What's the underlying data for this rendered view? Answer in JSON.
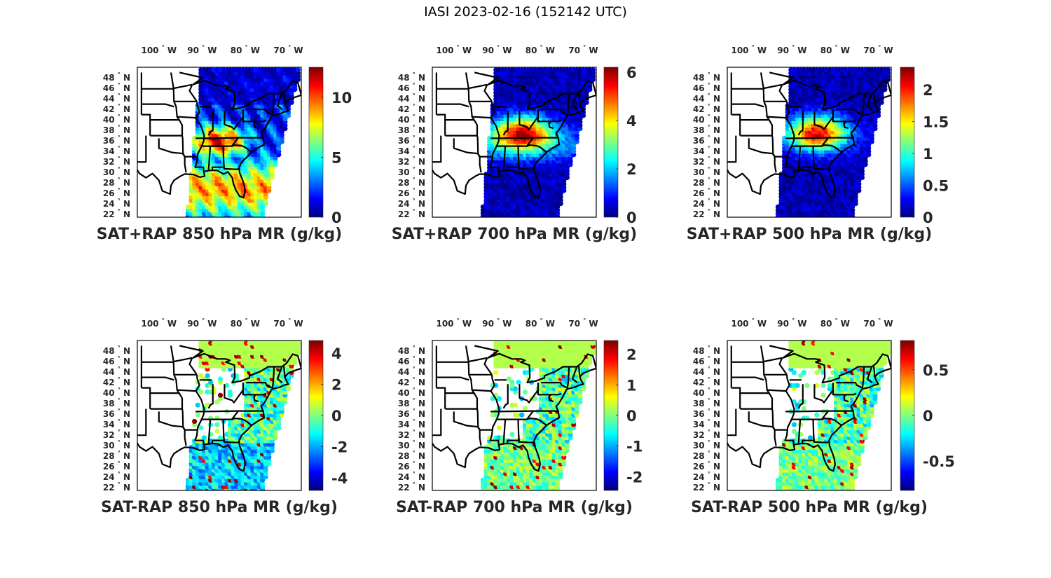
{
  "figure_title": "IASI 2023-02-16 (152142 UTC)",
  "colormap": [
    "#00007f",
    "#0000ff",
    "#007fff",
    "#00ffff",
    "#7fff7f",
    "#ffff00",
    "#ff7f00",
    "#ff0000",
    "#7f0000"
  ],
  "state_line_color": "#000000",
  "chart_data": [
    {
      "type": "heatmap",
      "title": "SAT+RAP 850 hPa MR (g/kg)",
      "xticklabels": [
        "100",
        "90",
        "80",
        "70"
      ],
      "xtick_suffix": "W",
      "yticklabels": [
        "48",
        "46",
        "44",
        "42",
        "40",
        "38",
        "36",
        "34",
        "32",
        "30",
        "28",
        "26",
        "24",
        "22"
      ],
      "ytick_suffix": "N",
      "deg_symbol": "°",
      "colorbar": {
        "clim": [
          0,
          12.5
        ],
        "ticks": [
          0,
          5,
          10
        ],
        "ticklabels": [
          "0",
          "5",
          "10"
        ]
      },
      "field": "total"
    },
    {
      "type": "heatmap",
      "title": "SAT+RAP 700 hPa MR (g/kg)",
      "xticklabels": [
        "100",
        "90",
        "80",
        "70"
      ],
      "xtick_suffix": "W",
      "yticklabels": [
        "48",
        "46",
        "44",
        "42",
        "40",
        "38",
        "36",
        "34",
        "32",
        "30",
        "28",
        "26",
        "24",
        "22"
      ],
      "ytick_suffix": "N",
      "deg_symbol": "°",
      "colorbar": {
        "clim": [
          0,
          6.2
        ],
        "ticks": [
          0,
          2,
          4,
          6
        ],
        "ticklabels": [
          "0",
          "2",
          "4",
          "6"
        ]
      },
      "field": "total"
    },
    {
      "type": "heatmap",
      "title": "SAT+RAP 500 hPa MR (g/kg)",
      "xticklabels": [
        "100",
        "90",
        "80",
        "70"
      ],
      "xtick_suffix": "W",
      "yticklabels": [
        "48",
        "46",
        "44",
        "42",
        "40",
        "38",
        "36",
        "34",
        "32",
        "30",
        "28",
        "26",
        "24",
        "22"
      ],
      "ytick_suffix": "N",
      "deg_symbol": "°",
      "colorbar": {
        "clim": [
          0,
          2.35
        ],
        "ticks": [
          0,
          0.5,
          1,
          1.5,
          2
        ],
        "ticklabels": [
          "0",
          "0.5",
          "1",
          "1.5",
          "2"
        ]
      },
      "field": "total"
    },
    {
      "type": "heatmap",
      "title": "SAT-RAP 850 hPa MR (g/kg)",
      "xticklabels": [
        "100",
        "90",
        "80",
        "70"
      ],
      "xtick_suffix": "W",
      "yticklabels": [
        "48",
        "46",
        "44",
        "42",
        "40",
        "38",
        "36",
        "34",
        "32",
        "30",
        "28",
        "26",
        "24",
        "22"
      ],
      "ytick_suffix": "N",
      "deg_symbol": "°",
      "colorbar": {
        "clim": [
          -4.8,
          4.8
        ],
        "ticks": [
          -4,
          -2,
          0,
          2,
          4
        ],
        "ticklabels": [
          "-4",
          "-2",
          "0",
          "2",
          "4"
        ]
      },
      "field": "diff"
    },
    {
      "type": "heatmap",
      "title": "SAT-RAP 700 hPa MR (g/kg)",
      "xticklabels": [
        "100",
        "90",
        "80",
        "70"
      ],
      "xtick_suffix": "W",
      "yticklabels": [
        "48",
        "46",
        "44",
        "42",
        "40",
        "38",
        "36",
        "34",
        "32",
        "30",
        "28",
        "26",
        "24",
        "22"
      ],
      "ytick_suffix": "N",
      "deg_symbol": "°",
      "colorbar": {
        "clim": [
          -2.45,
          2.45
        ],
        "ticks": [
          -2,
          -1,
          0,
          1,
          2
        ],
        "ticklabels": [
          "-2",
          "-1",
          "0",
          "1",
          "2"
        ]
      },
      "field": "diff"
    },
    {
      "type": "heatmap",
      "title": "SAT-RAP 500 hPa MR (g/kg)",
      "xticklabels": [
        "100",
        "90",
        "80",
        "70"
      ],
      "xtick_suffix": "W",
      "yticklabels": [
        "48",
        "46",
        "44",
        "42",
        "40",
        "38",
        "36",
        "34",
        "32",
        "30",
        "28",
        "26",
        "24",
        "22"
      ],
      "ytick_suffix": "N",
      "deg_symbol": "°",
      "colorbar": {
        "clim": [
          -0.82,
          0.82
        ],
        "ticks": [
          -0.5,
          0,
          0.5
        ],
        "ticklabels": [
          "-0.5",
          "0",
          "0.5"
        ]
      },
      "field": "diff"
    }
  ]
}
